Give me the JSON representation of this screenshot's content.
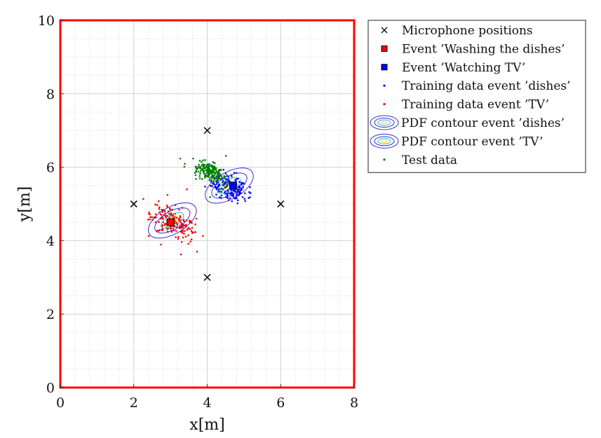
{
  "chart_data": {
    "type": "scatter",
    "xlabel": "x[m]",
    "ylabel": "y[m]",
    "xlim": [
      0,
      8
    ],
    "ylim": [
      0,
      10
    ],
    "x_ticks": [
      0,
      2,
      4,
      6,
      8
    ],
    "y_ticks": [
      0,
      2,
      4,
      6,
      8,
      10
    ],
    "grid": "on (major and minor, light gray)",
    "legend_placement": "outside-right-top",
    "colors": {
      "frame": "#ff0000",
      "microphone": "#111111",
      "dishes": "#ff0000",
      "tv": "#0000ff",
      "test": "#008000",
      "contour_outer": "#3b2fcf",
      "contour_inner": "#32b6e0",
      "contour_core": "#f0e020"
    },
    "legend": [
      {
        "label": "Microphone positions",
        "marker": "x",
        "color": "#111111"
      },
      {
        "label": "Event ’Washing the dishes’",
        "marker": "square",
        "color": "#ff0000"
      },
      {
        "label": "Event ’Watching TV’",
        "marker": "square",
        "color": "#0000ff"
      },
      {
        "label": "Training data event ’dishes’",
        "marker": "dot",
        "color": "#0000ff"
      },
      {
        "label": "Training data event ’TV’",
        "marker": "dot",
        "color": "#ff0000"
      },
      {
        "label": "PDF contour event ’dishes’",
        "marker": "contour",
        "color": "#3b2fcf"
      },
      {
        "label": "PDF contour event ’TV’",
        "marker": "contour",
        "color": "#3b2fcf"
      },
      {
        "label": "Test data",
        "marker": "dot",
        "color": "#008000"
      }
    ],
    "series": [
      {
        "name": "Microphone positions",
        "marker": "x",
        "points": [
          [
            2,
            5
          ],
          [
            4,
            7
          ],
          [
            6,
            5
          ],
          [
            4,
            3
          ]
        ]
      },
      {
        "name": "Event ’Washing the dishes’",
        "marker": "square",
        "points": [
          [
            3,
            4.5
          ]
        ]
      },
      {
        "name": "Event ’Watching TV’",
        "marker": "square",
        "points": [
          [
            4.7,
            5.5
          ]
        ]
      },
      {
        "name": "Training data event ’dishes’",
        "marker": "dot",
        "center": [
          4.6,
          5.45
        ],
        "spread_approx": [
          0.25,
          0.2
        ],
        "n_approx": 200
      },
      {
        "name": "Training data event ’TV’",
        "marker": "dot",
        "center": [
          3.05,
          4.5
        ],
        "spread_approx": [
          0.3,
          0.25
        ],
        "n_approx": 200
      },
      {
        "name": "Test data",
        "marker": "dot",
        "center": [
          4.1,
          5.85
        ],
        "spread_approx": [
          0.18,
          0.15
        ],
        "n_approx": 200
      }
    ],
    "contours": [
      {
        "name": "PDF contour event ’dishes’",
        "center": [
          4.6,
          5.5
        ],
        "angle_deg": -30
      },
      {
        "name": "PDF contour event ’TV’",
        "center": [
          3.05,
          4.55
        ],
        "angle_deg": -30
      }
    ]
  }
}
